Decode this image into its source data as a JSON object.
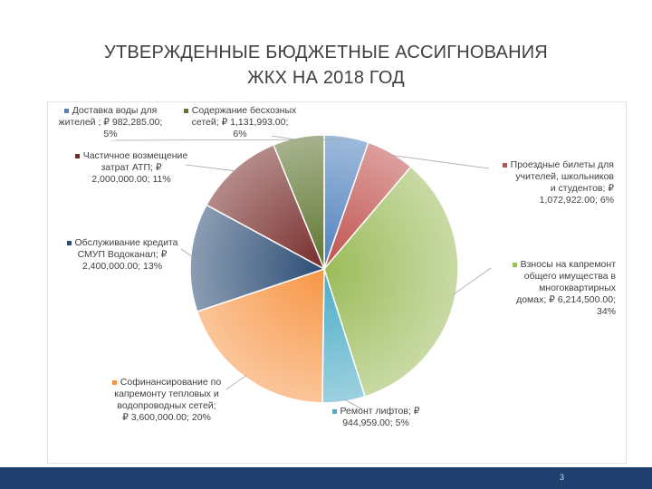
{
  "slide": {
    "title_line1": "УТВЕРЖДЕННЫЕ БЮДЖЕТНЫЕ АССИГНОВАНИЯ",
    "title_line2": "ЖКХ НА 2018 ГОД",
    "page_number": "3"
  },
  "chart_data": {
    "type": "pie",
    "title": "УТВЕРЖДЕННЫЕ БЮДЖЕТНЫЕ АССИГНОВАНИЯ ЖКХ НА 2018 ГОД",
    "slices": [
      {
        "label": "Доставка воды для\nжителей ; ₽ 982,285.00;\n5%",
        "value": 982285,
        "percent": 5,
        "color": "#4f81bd"
      },
      {
        "label": "Проездные билеты для\nучителей, школьников\nи студентов; ₽\n1,072,922.00; 6%",
        "value": 1072922,
        "percent": 6,
        "color": "#c0504d"
      },
      {
        "label": "Взносы на капремонт\nобщего имущества в\nмногоквартирных\nдомах; ₽ 6,214,500.00;\n34%",
        "value": 6214500,
        "percent": 34,
        "color": "#9bbb59"
      },
      {
        "label": "Ремонт лифтов; ₽\n944,959.00; 5%",
        "value": 944959,
        "percent": 5,
        "color": "#4bacc6"
      },
      {
        "label": "Софинансирование по\nкапремонту тепловых и\nводопроводных сетей;\n₽ 3,600,000.00; 20%",
        "value": 3600000,
        "percent": 20,
        "color": "#f79646"
      },
      {
        "label": "Обслуживание кредита\nСМУП Водоканал; ₽\n2,400,000.00; 13%",
        "value": 2400000,
        "percent": 13,
        "color": "#2c4d75"
      },
      {
        "label": "Частичное возмещение\nзатрат АТП; ₽\n2,000,000.00; 11%",
        "value": 2000000,
        "percent": 11,
        "color": "#772c2a"
      },
      {
        "label": "Содержание бесхозных\nсетей; ₽ 1,131,993.00;\n6%",
        "value": 1131993,
        "percent": 6,
        "color": "#5f7530"
      }
    ]
  }
}
